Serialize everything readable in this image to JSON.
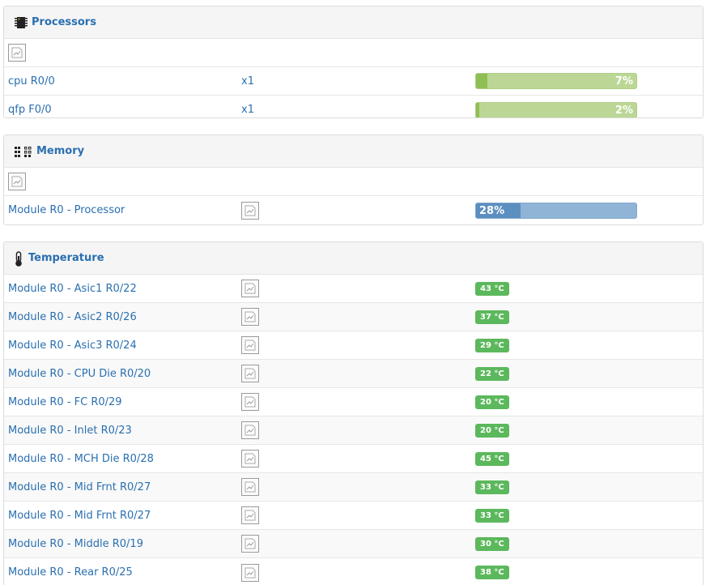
{
  "processors": {
    "title": "Processors",
    "rows": [
      {
        "label": "cpu R0/0",
        "count": "x1",
        "percent_text": "7%",
        "percent": 7
      },
      {
        "label": "qfp F0/0",
        "count": "x1",
        "percent_text": "2%",
        "percent": 2
      }
    ]
  },
  "memory": {
    "title": "Memory",
    "rows": [
      {
        "label": "Module R0 - Processor",
        "percent_text": "28%",
        "percent": 28
      }
    ]
  },
  "temperature": {
    "title": "Temperature",
    "rows": [
      {
        "label": "Module R0 - Asic1 R0/22",
        "value": "43 °C"
      },
      {
        "label": "Module R0 - Asic2 R0/26",
        "value": "37 °C"
      },
      {
        "label": "Module R0 - Asic3 R0/24",
        "value": "29 °C"
      },
      {
        "label": "Module R0 - CPU Die R0/20",
        "value": "22 °C"
      },
      {
        "label": "Module R0 - FC R0/29",
        "value": "20 °C"
      },
      {
        "label": "Module R0 - Inlet R0/23",
        "value": "20 °C"
      },
      {
        "label": "Module R0 - MCH Die R0/28",
        "value": "45 °C"
      },
      {
        "label": "Module R0 - Mid Frnt R0/27",
        "value": "33 °C"
      },
      {
        "label": "Module R0 - Mid Frnt R0/27",
        "value": "33 °C"
      },
      {
        "label": "Module R0 - Middle R0/19",
        "value": "30 °C"
      },
      {
        "label": "Module R0 - Rear R0/25",
        "value": "38 °C"
      }
    ]
  },
  "icons": {
    "processors": "processor-chip-icon",
    "memory": "memory-grid-icon",
    "temperature": "thermometer-icon",
    "graph": "graph-thumbnail-icon"
  },
  "colors": {
    "link": "#2a6fb0",
    "bar_green_bg": "#bcd795",
    "bar_green_fill": "#8fbf54",
    "bar_blue_bg": "#8fb4d6",
    "bar_blue_fill": "#5b8fc0",
    "badge_green": "#5cb85c"
  }
}
